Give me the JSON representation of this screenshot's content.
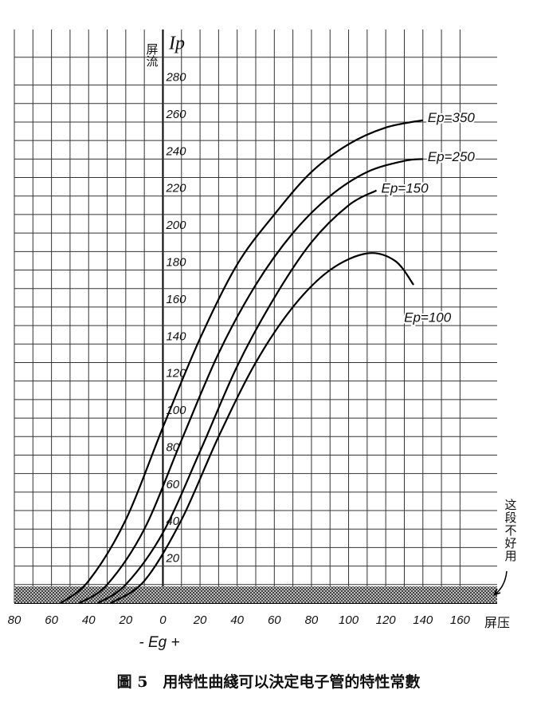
{
  "chart_data": {
    "type": "line",
    "caption": "圖 5　用特性曲綫可以決定电子管的特性常數",
    "ylabel": "屏流",
    "ylabel_symbol": "Ip",
    "xlabel": "屏压",
    "xlabel_sign": "- Eg +",
    "annotation": "这段不好用",
    "hatched_band": [
      0,
      9
    ],
    "xlim": [
      -80,
      180
    ],
    "ylim": [
      0,
      310
    ],
    "xticks": [
      {
        "value": -80,
        "label": "80"
      },
      {
        "value": -60,
        "label": "60"
      },
      {
        "value": -40,
        "label": "40"
      },
      {
        "value": -20,
        "label": "20"
      },
      0,
      20,
      40,
      60,
      80,
      100,
      120,
      140,
      160
    ],
    "yticks": [
      20,
      40,
      60,
      80,
      100,
      120,
      140,
      160,
      180,
      200,
      220,
      240,
      260,
      280
    ],
    "grid": true,
    "minor_grid": true,
    "color": "#000000",
    "series": [
      {
        "name": "Ep=350",
        "x": [
          -55,
          -40,
          -20,
          0,
          20,
          40,
          60,
          80,
          100,
          120,
          140
        ],
        "values": [
          0,
          12,
          45,
          95,
          143,
          183,
          210,
          233,
          248,
          257,
          261
        ]
      },
      {
        "name": "Ep=250",
        "x": [
          -45,
          -30,
          -10,
          10,
          30,
          50,
          70,
          90,
          110,
          130,
          140
        ],
        "values": [
          0,
          10,
          40,
          88,
          135,
          172,
          200,
          220,
          233,
          239,
          240
        ]
      },
      {
        "name": "Ep=150",
        "x": [
          -35,
          -20,
          0,
          20,
          40,
          60,
          80,
          100,
          115
        ],
        "values": [
          0,
          10,
          38,
          82,
          128,
          165,
          195,
          215,
          223
        ]
      },
      {
        "name": "Ep=100",
        "x": [
          -28,
          -10,
          10,
          30,
          50,
          70,
          90,
          110,
          125,
          135
        ],
        "values": [
          0,
          12,
          45,
          90,
          130,
          160,
          180,
          189,
          185,
          172
        ]
      }
    ]
  }
}
